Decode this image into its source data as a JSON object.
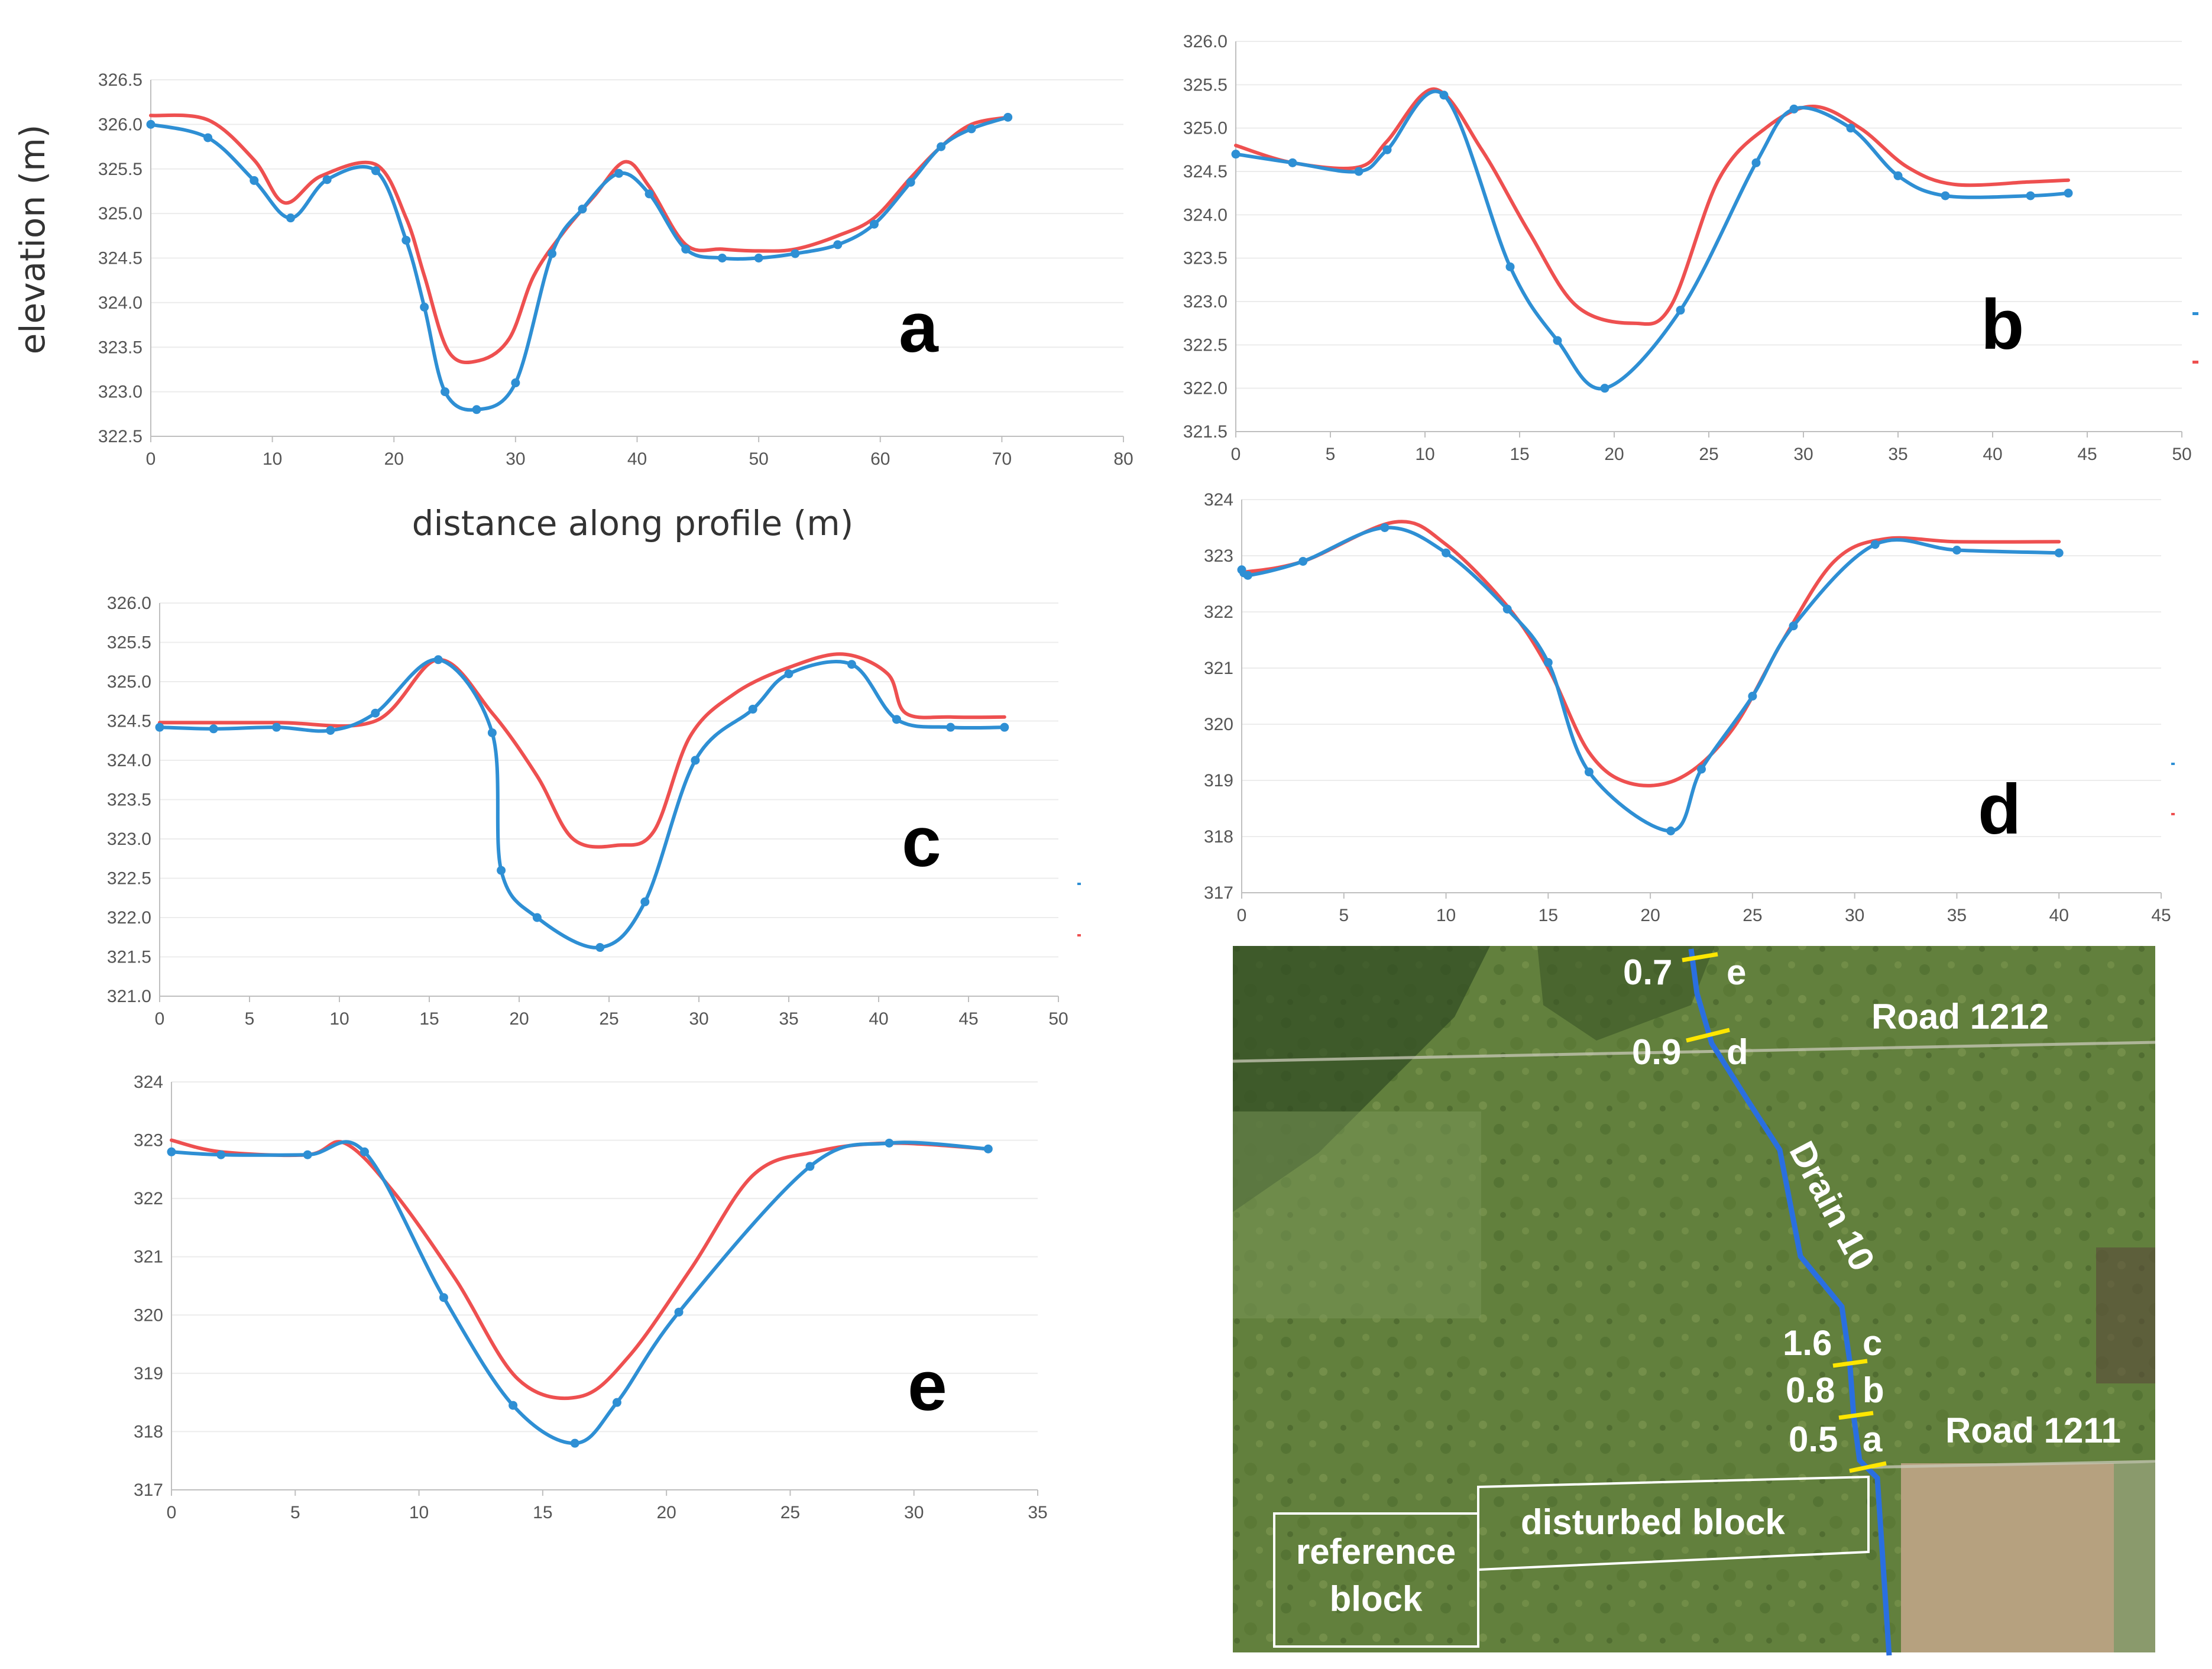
{
  "colors": {
    "series_surveyed": "#2e8fd4",
    "series_model": "#ee5050",
    "axis": "#bfbfbf",
    "grid": "#ececec",
    "map_field": "#5f7a3a",
    "map_channel": "#2a6fe0",
    "map_marker": "#ffe600"
  },
  "chart_data": [
    {
      "panel": "a",
      "type": "line",
      "title": "",
      "xlabel": "distance along profile (m)",
      "ylabel": "elevation (m)",
      "xlim": [
        0,
        80
      ],
      "ylim": [
        322.5,
        326.5
      ],
      "xticks": [
        0,
        10,
        20,
        30,
        40,
        50,
        60,
        70,
        80
      ],
      "yticks": [
        322.5,
        323.0,
        323.5,
        324.0,
        324.5,
        325.0,
        325.5,
        326.0,
        326.5
      ],
      "series": [
        {
          "name": "blue",
          "markers": true,
          "x": [
            0,
            4.7,
            8.5,
            11.5,
            14.5,
            18.5,
            21,
            22.5,
            24.2,
            26.8,
            30,
            33,
            35.5,
            38.5,
            41,
            44,
            47,
            50,
            53,
            56.5,
            59.5,
            62.5,
            65,
            67.5,
            70.5
          ],
          "y": [
            326.0,
            325.85,
            325.37,
            324.95,
            325.38,
            325.48,
            324.7,
            323.95,
            323.0,
            322.8,
            323.1,
            324.55,
            325.05,
            325.45,
            325.22,
            324.6,
            324.5,
            324.5,
            324.55,
            324.65,
            324.88,
            325.35,
            325.75,
            325.95,
            326.08
          ]
        },
        {
          "name": "red",
          "markers": false,
          "x": [
            0,
            4.7,
            8.5,
            11,
            14,
            18.5,
            21,
            22.5,
            24.5,
            27,
            29.5,
            31.5,
            34,
            36.5,
            39,
            41,
            44,
            47,
            50,
            53,
            56.5,
            59.5,
            62.5,
            65,
            67.5,
            70.5
          ],
          "y": [
            326.1,
            326.05,
            325.6,
            325.12,
            325.42,
            325.55,
            324.95,
            324.3,
            323.45,
            323.35,
            323.6,
            324.3,
            324.8,
            325.2,
            325.58,
            325.3,
            324.65,
            324.6,
            324.58,
            324.6,
            324.75,
            324.95,
            325.4,
            325.75,
            326.0,
            326.08
          ]
        }
      ]
    },
    {
      "panel": "b",
      "type": "line",
      "title": "",
      "xlabel": "",
      "ylabel": "",
      "xlim": [
        0,
        50
      ],
      "ylim": [
        321.5,
        326.0
      ],
      "xticks": [
        0,
        5,
        10,
        15,
        20,
        25,
        30,
        35,
        40,
        45,
        50
      ],
      "yticks": [
        321.5,
        322.0,
        322.5,
        323.0,
        323.5,
        324.0,
        324.5,
        325.0,
        325.5,
        326.0
      ],
      "series": [
        {
          "name": "blue",
          "markers": true,
          "x": [
            0,
            3,
            6.5,
            8,
            11,
            14.5,
            17,
            19.5,
            23.5,
            27.5,
            29.5,
            32.5,
            35,
            37.5,
            42,
            44
          ],
          "y": [
            324.7,
            324.6,
            324.5,
            324.75,
            325.38,
            323.4,
            322.55,
            322.0,
            322.9,
            324.6,
            325.22,
            325.0,
            324.45,
            324.22,
            324.22,
            324.25
          ]
        },
        {
          "name": "red",
          "markers": false,
          "x": [
            0,
            3,
            6.5,
            8,
            10.5,
            13,
            15.5,
            18,
            21,
            23,
            25.5,
            28,
            30.5,
            33,
            35.5,
            38,
            42,
            44
          ],
          "y": [
            324.8,
            324.6,
            324.55,
            324.85,
            325.45,
            324.75,
            323.8,
            322.95,
            322.75,
            322.95,
            324.4,
            325.0,
            325.25,
            325.0,
            324.55,
            324.35,
            324.38,
            324.4
          ]
        }
      ]
    },
    {
      "panel": "c",
      "type": "line",
      "title": "",
      "xlabel": "",
      "ylabel": "",
      "xlim": [
        0,
        50
      ],
      "ylim": [
        321.0,
        326.0
      ],
      "xticks": [
        0,
        5,
        10,
        15,
        20,
        25,
        30,
        35,
        40,
        45,
        50
      ],
      "yticks": [
        321.0,
        321.5,
        322.0,
        322.5,
        323.0,
        323.5,
        324.0,
        324.5,
        325.0,
        325.5,
        326.0
      ],
      "series": [
        {
          "name": "blue",
          "markers": true,
          "x": [
            0,
            3,
            6.5,
            9.5,
            12,
            15.5,
            18.5,
            19,
            21,
            24.5,
            27,
            29.8,
            33,
            35,
            38.5,
            41,
            44,
            47
          ],
          "y": [
            324.42,
            324.4,
            324.42,
            324.38,
            324.6,
            325.28,
            324.35,
            322.6,
            322.0,
            321.62,
            322.2,
            324.0,
            324.65,
            325.1,
            325.22,
            324.52,
            324.42,
            324.42
          ]
        },
        {
          "name": "red",
          "markers": false,
          "x": [
            0,
            6.5,
            12,
            15.5,
            18.5,
            21,
            23,
            25.5,
            27.5,
            29.5,
            32,
            35,
            38,
            40.5,
            41.5,
            44,
            47
          ],
          "y": [
            324.48,
            324.48,
            324.5,
            325.28,
            324.6,
            323.8,
            323.0,
            322.92,
            323.1,
            324.3,
            324.85,
            325.18,
            325.35,
            325.1,
            324.6,
            324.55,
            324.55
          ]
        }
      ]
    },
    {
      "panel": "d",
      "type": "line",
      "title": "",
      "xlabel": "",
      "ylabel": "",
      "xlim": [
        0,
        45
      ],
      "ylim": [
        317,
        324
      ],
      "xticks": [
        0,
        5,
        10,
        15,
        20,
        25,
        30,
        35,
        40,
        45
      ],
      "yticks": [
        317,
        318,
        319,
        320,
        321,
        322,
        323,
        324
      ],
      "series": [
        {
          "name": "blue",
          "markers": true,
          "x": [
            0,
            0.3,
            3,
            7,
            10,
            13,
            15,
            17,
            21,
            22.5,
            25,
            27,
            31,
            35,
            40
          ],
          "y": [
            322.75,
            322.65,
            322.9,
            323.5,
            323.05,
            322.05,
            321.1,
            319.15,
            318.1,
            319.2,
            320.5,
            321.75,
            323.2,
            323.1,
            323.05
          ]
        },
        {
          "name": "red",
          "markers": false,
          "x": [
            0,
            3,
            7.5,
            10,
            13,
            15,
            17,
            19,
            21.5,
            24,
            26.5,
            29,
            31.5,
            35,
            40
          ],
          "y": [
            322.7,
            322.9,
            323.6,
            323.2,
            322.1,
            321.0,
            319.5,
            318.95,
            319.05,
            319.9,
            321.5,
            322.9,
            323.3,
            323.25,
            323.25
          ]
        }
      ]
    },
    {
      "panel": "e",
      "type": "line",
      "title": "",
      "xlabel": "",
      "ylabel": "",
      "xlim": [
        0,
        35
      ],
      "ylim": [
        317.0,
        324.0
      ],
      "xticks": [
        0,
        5,
        10,
        15,
        20,
        25,
        30,
        35
      ],
      "yticks": [
        317.0,
        318.0,
        319.0,
        320.0,
        321.0,
        322.0,
        323.0,
        324.0
      ],
      "series": [
        {
          "name": "blue",
          "markers": true,
          "x": [
            0,
            2,
            5.5,
            7.8,
            11,
            13.8,
            16.3,
            18,
            20.5,
            25.8,
            29,
            33
          ],
          "y": [
            322.8,
            322.75,
            322.75,
            322.8,
            320.3,
            318.45,
            317.8,
            318.5,
            320.05,
            322.55,
            322.95,
            322.85
          ]
        },
        {
          "name": "red",
          "markers": false,
          "x": [
            0,
            2,
            5.5,
            7,
            9,
            11.5,
            14,
            16.5,
            18.5,
            21,
            23.5,
            26,
            29,
            33
          ],
          "y": [
            323.0,
            322.8,
            322.75,
            322.95,
            322.1,
            320.6,
            318.9,
            318.6,
            319.3,
            320.8,
            322.4,
            322.8,
            322.95,
            322.85
          ]
        }
      ]
    }
  ],
  "map": {
    "channel_label": "Drain 10",
    "road_north": "Road 1212",
    "road_south": "Road 1211",
    "block_disturbed": "disturbed block",
    "block_reference_line1": "reference",
    "block_reference_line2": "block",
    "sections": [
      {
        "value": "0.7",
        "letter": "e"
      },
      {
        "value": "0.9",
        "letter": "d"
      },
      {
        "value": "1.6",
        "letter": "c"
      },
      {
        "value": "0.8",
        "letter": "b"
      },
      {
        "value": "0.5",
        "letter": "a"
      }
    ]
  }
}
